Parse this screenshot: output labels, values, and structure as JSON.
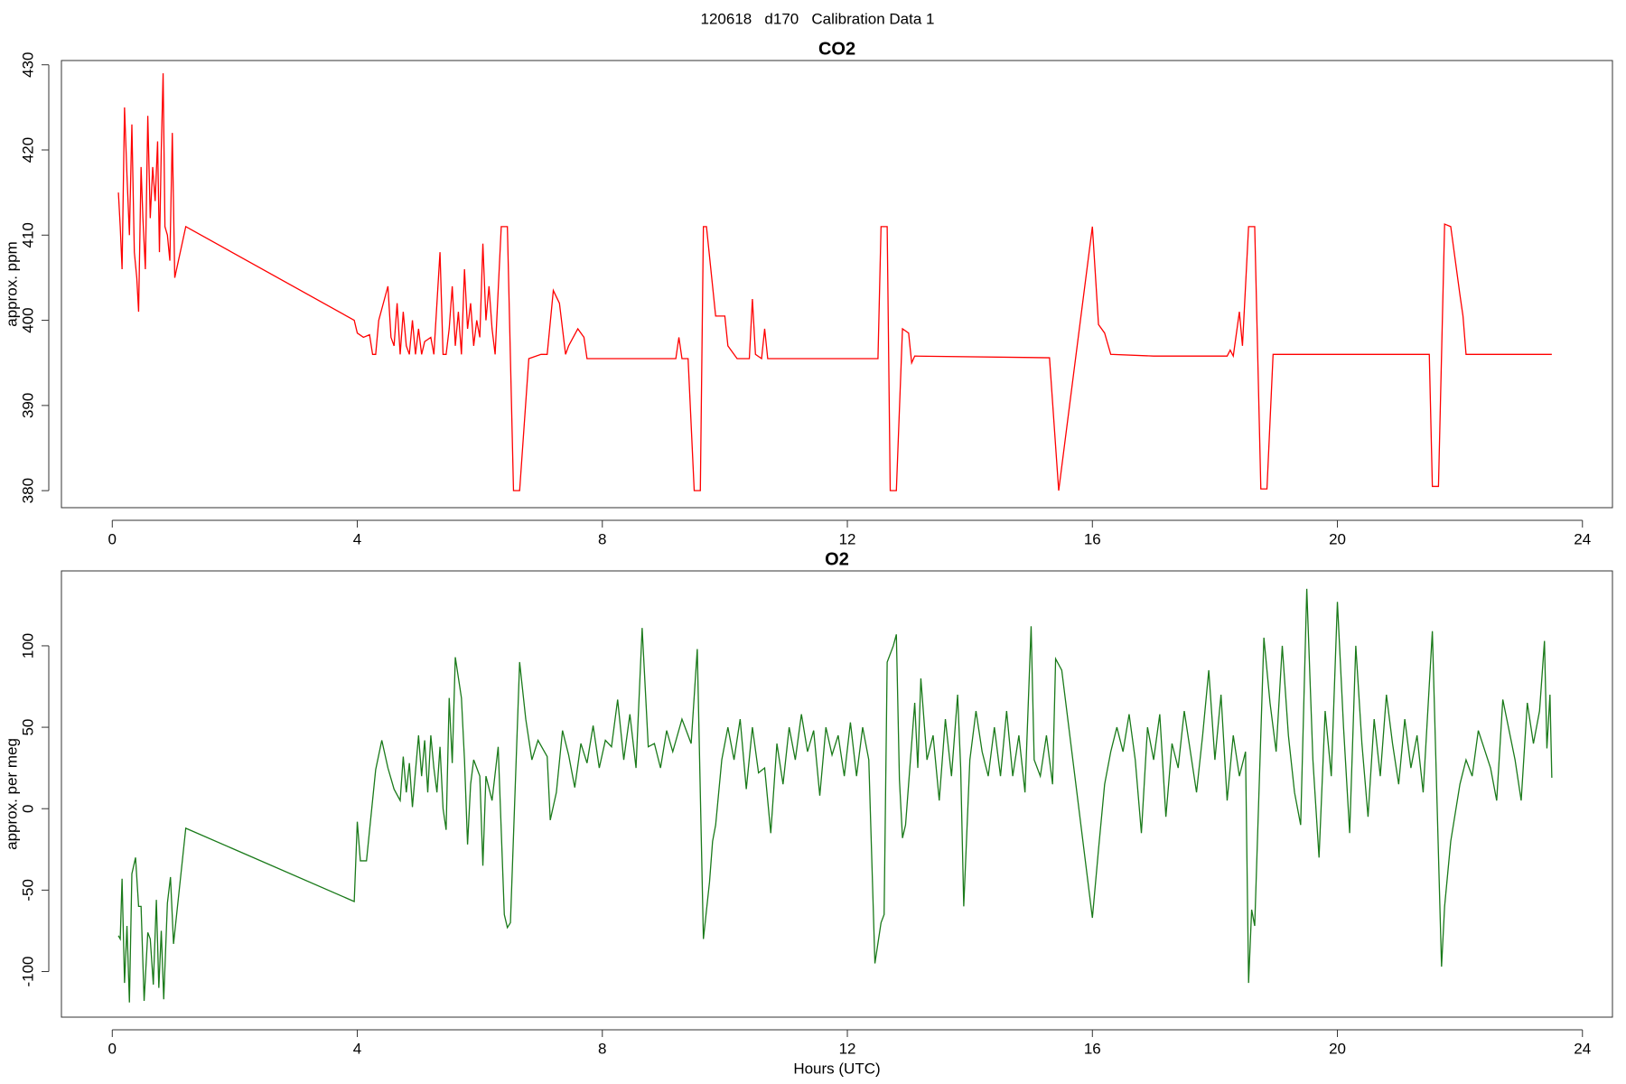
{
  "title": "120618   d170   Calibration Data 1",
  "chart_data": [
    {
      "type": "line",
      "title": "CO2",
      "ylabel": "approx. ppm",
      "xlim": [
        -0.83,
        24.49
      ],
      "ylim": [
        378,
        430.5
      ],
      "xticks": [
        0,
        4,
        8,
        12,
        16,
        20,
        24
      ],
      "yticks": [
        380,
        390,
        400,
        410,
        420,
        430
      ],
      "x": [
        0.1,
        0.13,
        0.16,
        0.2,
        0.24,
        0.28,
        0.32,
        0.36,
        0.4,
        0.43,
        0.47,
        0.5,
        0.54,
        0.58,
        0.62,
        0.66,
        0.7,
        0.74,
        0.77,
        0.8,
        0.83,
        0.86,
        0.9,
        0.94,
        0.98,
        1.02,
        1.2,
        3.95,
        4.0,
        4.1,
        4.2,
        4.25,
        4.3,
        4.35,
        4.5,
        4.55,
        4.6,
        4.65,
        4.7,
        4.75,
        4.8,
        4.85,
        4.9,
        4.95,
        5.0,
        5.05,
        5.1,
        5.2,
        5.25,
        5.3,
        5.35,
        5.4,
        5.45,
        5.5,
        5.55,
        5.6,
        5.65,
        5.7,
        5.75,
        5.8,
        5.85,
        5.9,
        5.95,
        6.0,
        6.05,
        6.1,
        6.15,
        6.2,
        6.25,
        6.35,
        6.45,
        6.55,
        6.65,
        6.8,
        7.0,
        7.1,
        7.2,
        7.3,
        7.4,
        7.45,
        7.6,
        7.7,
        7.75,
        8.5,
        9.2,
        9.25,
        9.3,
        9.4,
        9.5,
        9.6,
        9.65,
        9.7,
        9.8,
        9.85,
        10.0,
        10.05,
        10.2,
        10.4,
        10.45,
        10.5,
        10.6,
        10.65,
        10.7,
        12.5,
        12.55,
        12.65,
        12.7,
        12.8,
        12.9,
        13.0,
        13.05,
        13.1,
        15.3,
        15.45,
        16.0,
        16.1,
        16.2,
        16.3,
        17.0,
        18.2,
        18.25,
        18.3,
        18.4,
        18.45,
        18.55,
        18.65,
        18.75,
        18.85,
        18.95,
        20.0,
        21.5,
        21.55,
        21.65,
        21.75,
        21.85,
        22.0,
        22.05,
        22.1,
        23.5
      ],
      "series": [
        {
          "color": "#ff0000",
          "values": [
            415,
            411,
            406,
            425,
            417,
            410,
            423,
            408,
            405,
            401,
            418,
            412,
            406,
            424,
            412,
            418,
            414,
            421,
            408,
            420,
            429,
            411,
            410,
            407,
            422,
            405,
            411,
            400,
            398.5,
            398,
            398.3,
            396,
            396,
            400,
            404,
            398,
            397,
            402,
            396,
            401,
            397,
            396,
            400,
            396,
            399,
            396,
            397.5,
            398,
            396,
            402,
            408,
            396,
            396,
            399,
            404,
            397,
            401,
            396,
            406,
            399,
            402,
            397,
            400,
            398,
            409,
            400,
            404,
            399,
            396,
            411,
            411,
            380,
            380,
            395.5,
            396,
            396,
            403.5,
            402,
            396,
            397,
            399,
            398,
            395.5,
            395.5,
            395.5,
            398,
            395.5,
            395.5,
            380,
            380,
            411,
            411,
            404,
            400.5,
            400.5,
            397,
            395.5,
            395.5,
            402.5,
            396,
            395.5,
            399,
            395.5,
            395.5,
            411,
            411,
            380,
            380,
            399,
            398.5,
            395,
            395.8,
            395.6,
            380,
            411,
            399.5,
            398.5,
            396,
            395.8,
            395.8,
            396.5,
            395.8,
            401,
            397,
            411,
            411,
            380.2,
            380.2,
            396,
            396,
            396,
            380.5,
            380.5,
            411.3,
            411,
            403,
            400.5,
            396,
            396
          ]
        }
      ]
    },
    {
      "type": "line",
      "title": "O2",
      "ylabel": "approx. per meg",
      "xlabel": "Hours (UTC)",
      "xlim": [
        -0.83,
        24.49
      ],
      "ylim": [
        -128,
        146
      ],
      "xticks": [
        0,
        4,
        8,
        12,
        16,
        20,
        24
      ],
      "yticks": [
        -100,
        -50,
        0,
        50,
        100
      ],
      "x": [
        0.1,
        0.13,
        0.16,
        0.2,
        0.24,
        0.28,
        0.32,
        0.38,
        0.43,
        0.47,
        0.52,
        0.58,
        0.62,
        0.67,
        0.72,
        0.76,
        0.8,
        0.84,
        0.9,
        0.95,
        1.0,
        1.2,
        3.95,
        4.0,
        4.05,
        4.15,
        4.3,
        4.4,
        4.5,
        4.6,
        4.7,
        4.75,
        4.8,
        4.85,
        4.9,
        5.0,
        5.05,
        5.1,
        5.15,
        5.2,
        5.25,
        5.3,
        5.35,
        5.4,
        5.45,
        5.5,
        5.55,
        5.6,
        5.7,
        5.75,
        5.8,
        5.85,
        5.9,
        6.0,
        6.05,
        6.1,
        6.2,
        6.3,
        6.4,
        6.45,
        6.5,
        6.65,
        6.75,
        6.85,
        6.95,
        7.1,
        7.15,
        7.25,
        7.35,
        7.45,
        7.55,
        7.65,
        7.75,
        7.85,
        7.95,
        8.05,
        8.15,
        8.25,
        8.35,
        8.45,
        8.55,
        8.65,
        8.75,
        8.85,
        8.95,
        9.05,
        9.15,
        9.3,
        9.45,
        9.55,
        9.65,
        9.75,
        9.8,
        9.85,
        9.95,
        10.05,
        10.15,
        10.25,
        10.35,
        10.45,
        10.55,
        10.65,
        10.75,
        10.85,
        10.95,
        11.05,
        11.15,
        11.25,
        11.35,
        11.45,
        11.55,
        11.65,
        11.75,
        11.85,
        11.95,
        12.05,
        12.15,
        12.25,
        12.35,
        12.45,
        12.55,
        12.6,
        12.65,
        12.75,
        12.8,
        12.85,
        12.9,
        12.95,
        13.05,
        13.1,
        13.15,
        13.2,
        13.3,
        13.4,
        13.5,
        13.6,
        13.7,
        13.8,
        13.85,
        13.9,
        14.0,
        14.1,
        14.2,
        14.3,
        14.4,
        14.5,
        14.6,
        14.7,
        14.8,
        14.9,
        15.0,
        15.05,
        15.15,
        15.25,
        15.35,
        15.4,
        15.5,
        16.0,
        16.1,
        16.2,
        16.3,
        16.4,
        16.5,
        16.6,
        16.7,
        16.8,
        16.9,
        17.0,
        17.1,
        17.2,
        17.3,
        17.4,
        17.5,
        17.6,
        17.7,
        17.8,
        17.9,
        18.0,
        18.1,
        18.2,
        18.3,
        18.4,
        18.5,
        18.55,
        18.6,
        18.65,
        18.8,
        18.9,
        19.0,
        19.1,
        19.2,
        19.3,
        19.4,
        19.5,
        19.6,
        19.7,
        19.8,
        19.9,
        20.0,
        20.1,
        20.2,
        20.3,
        20.4,
        20.5,
        20.6,
        20.7,
        20.8,
        20.9,
        21.0,
        21.1,
        21.2,
        21.3,
        21.4,
        21.55,
        21.7,
        21.75,
        21.85,
        22.0,
        22.1,
        22.2,
        22.3,
        22.5,
        22.6,
        22.7,
        22.9,
        23.0,
        23.1,
        23.2,
        23.3,
        23.38,
        23.42,
        23.47,
        23.5
      ],
      "series": [
        {
          "color": "#1a7a1a",
          "values": [
            -78,
            -80,
            -43,
            -107,
            -72,
            -119,
            -40,
            -30,
            -60,
            -60,
            -118,
            -76,
            -80,
            -108,
            -56,
            -110,
            -75,
            -117,
            -58,
            -42,
            -83,
            -12,
            -57,
            -8,
            -32,
            -32,
            24,
            42,
            25,
            12,
            5,
            32,
            10,
            28,
            1,
            45,
            20,
            42,
            10,
            45,
            25,
            10,
            38,
            0,
            -13,
            68,
            28,
            93,
            68,
            30,
            -22,
            15,
            30,
            20,
            -35,
            20,
            5,
            38,
            -65,
            -73,
            -70,
            90,
            55,
            30,
            42,
            32,
            -7,
            10,
            48,
            33,
            13,
            40,
            28,
            51,
            25,
            42,
            38,
            67,
            30,
            58,
            25,
            111,
            38,
            40,
            25,
            48,
            35,
            55,
            40,
            98,
            -80,
            -45,
            -20,
            -10,
            30,
            50,
            30,
            55,
            12,
            50,
            22,
            25,
            -15,
            40,
            15,
            50,
            30,
            58,
            35,
            48,
            8,
            50,
            33,
            45,
            20,
            53,
            20,
            50,
            30,
            -95,
            -70,
            -65,
            90,
            100,
            107,
            18,
            -18,
            -10,
            40,
            65,
            25,
            80,
            30,
            45,
            5,
            55,
            20,
            70,
            25,
            -60,
            30,
            60,
            35,
            20,
            50,
            20,
            60,
            20,
            45,
            10,
            112,
            30,
            20,
            45,
            15,
            92,
            85,
            -67,
            -25,
            15,
            35,
            50,
            35,
            58,
            30,
            -15,
            50,
            30,
            58,
            -5,
            40,
            25,
            60,
            35,
            10,
            45,
            85,
            30,
            70,
            5,
            45,
            20,
            35,
            -107,
            -62,
            -72,
            105,
            65,
            35,
            100,
            45,
            10,
            -10,
            135,
            30,
            -30,
            60,
            20,
            127,
            50,
            -15,
            100,
            40,
            -5,
            55,
            20,
            70,
            40,
            15,
            55,
            25,
            45,
            10,
            109,
            -97,
            -60,
            -20,
            15,
            30,
            20,
            48,
            25,
            5,
            67,
            30,
            5,
            65,
            40,
            60,
            103,
            37,
            70,
            19
          ]
        }
      ]
    }
  ]
}
